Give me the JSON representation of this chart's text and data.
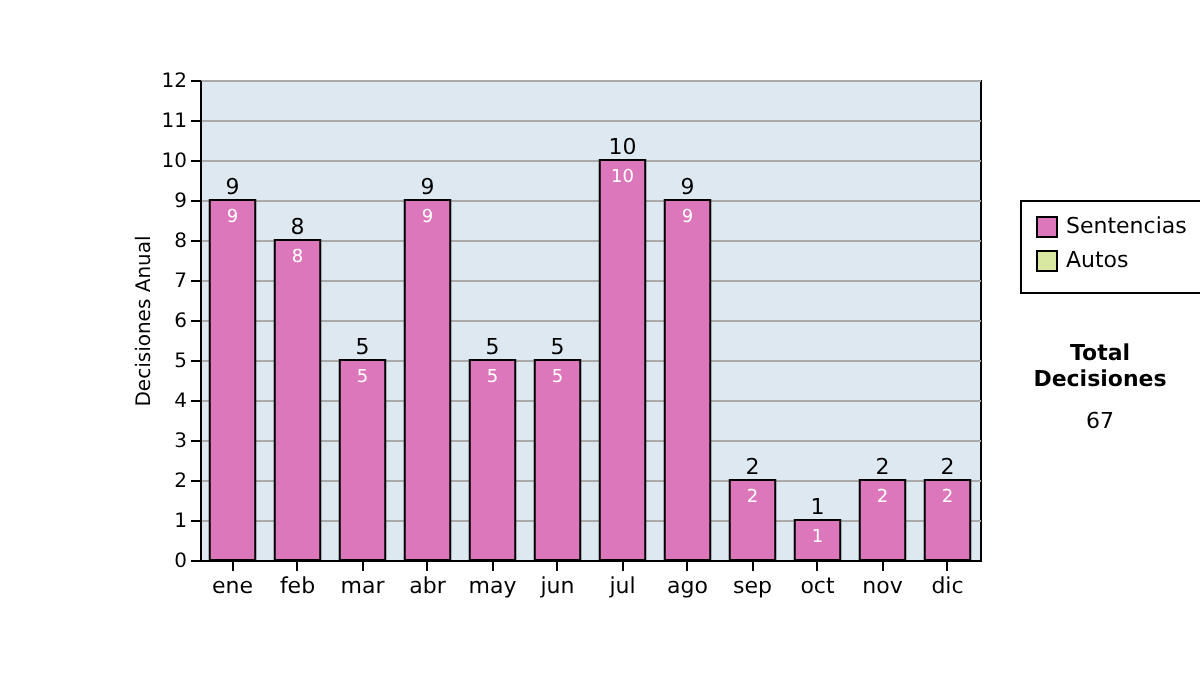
{
  "chart_data": {
    "type": "bar",
    "stacked": true,
    "ylabel": "Decisiones Anual",
    "categories": [
      "ene",
      "feb",
      "mar",
      "abr",
      "may",
      "jun",
      "jul",
      "ago",
      "sep",
      "oct",
      "nov",
      "dic"
    ],
    "series": [
      {
        "name": "Sentencias",
        "color": "#dd77bb",
        "values": [
          9,
          8,
          5,
          9,
          5,
          5,
          10,
          9,
          2,
          1,
          2,
          2
        ],
        "value_labels": [
          "9",
          "8",
          "5",
          "9",
          "5",
          "5",
          "10",
          "9",
          "2",
          "1",
          "2",
          "2"
        ]
      },
      {
        "name": "Autos",
        "color": "#d8e8a0",
        "values": [
          null,
          null,
          null,
          null,
          null,
          null,
          null,
          null,
          null,
          null,
          null,
          null
        ]
      }
    ],
    "totals": [
      "9",
      "8",
      "5",
      "9",
      "5",
      "5",
      "10",
      "9",
      "2",
      "1",
      "2",
      "2"
    ],
    "ylim": [
      0,
      12
    ],
    "yticks": [
      0,
      1,
      2,
      3,
      4,
      5,
      6,
      7,
      8,
      9,
      10,
      11,
      12
    ],
    "grid": "y",
    "legend": "right",
    "annotations": [
      "Total Decisiones",
      "67"
    ]
  }
}
